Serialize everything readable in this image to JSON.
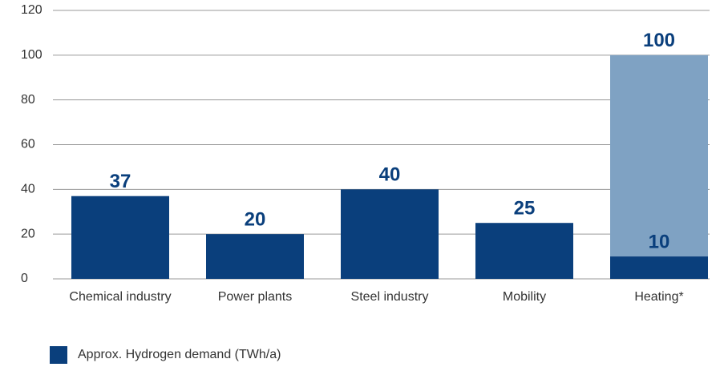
{
  "chart_data": {
    "type": "bar",
    "categories": [
      "Chemical industry",
      "Power plants",
      "Steel industry",
      "Mobility",
      "Heating*"
    ],
    "series": [
      {
        "name": "Approx. Hydrogen demand (TWh/a)",
        "color": "#0a3f7c",
        "values": [
          37,
          20,
          40,
          25,
          10
        ]
      },
      {
        "color": "#7fa2c3",
        "values": [
          null,
          null,
          null,
          null,
          100
        ]
      }
    ],
    "ylim": [
      0,
      120
    ],
    "yticks": [
      0,
      20,
      40,
      60,
      80,
      100,
      120
    ],
    "grid": true
  }
}
